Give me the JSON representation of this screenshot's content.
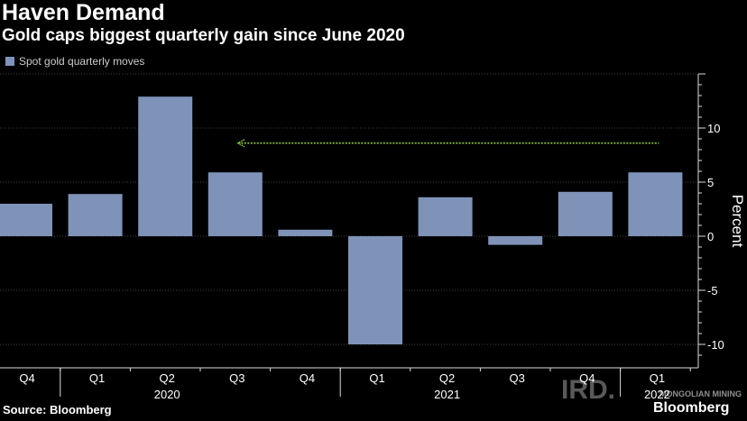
{
  "chart_data": {
    "type": "bar",
    "title": "Haven Demand",
    "subtitle": "Gold caps biggest quarterly gain since June 2020",
    "legend": [
      "Spot gold quarterly moves"
    ],
    "ylabel": "Percent",
    "ylim": [
      -11,
      15
    ],
    "yticks": [
      -10,
      -5,
      0,
      5,
      10
    ],
    "categories": [
      "Q4",
      "Q1",
      "Q2",
      "Q3",
      "Q4",
      "Q1",
      "Q2",
      "Q3",
      "Q4",
      "Q1"
    ],
    "years": [
      {
        "label": "2020",
        "category_index": 2
      },
      {
        "label": "2021",
        "category_index": 6
      },
      {
        "label": "2022",
        "category_index": 9
      }
    ],
    "series": [
      {
        "name": "Spot gold quarterly moves",
        "color": "#7f93b9",
        "values": [
          3.0,
          3.9,
          12.9,
          5.9,
          0.6,
          -10.0,
          3.6,
          -0.8,
          4.1,
          5.9
        ]
      }
    ],
    "reference_line": {
      "value": 8.6,
      "from_category_index": 3,
      "to_category_index": 9,
      "color": "#8fd13f"
    },
    "grid": true,
    "legend_position": "top-left"
  },
  "footer": {
    "source": "Source: Bloomberg",
    "brand": "Bloomberg"
  },
  "watermark": {
    "logo": "IRD.",
    "text": "MONGOLIAN MINING"
  }
}
